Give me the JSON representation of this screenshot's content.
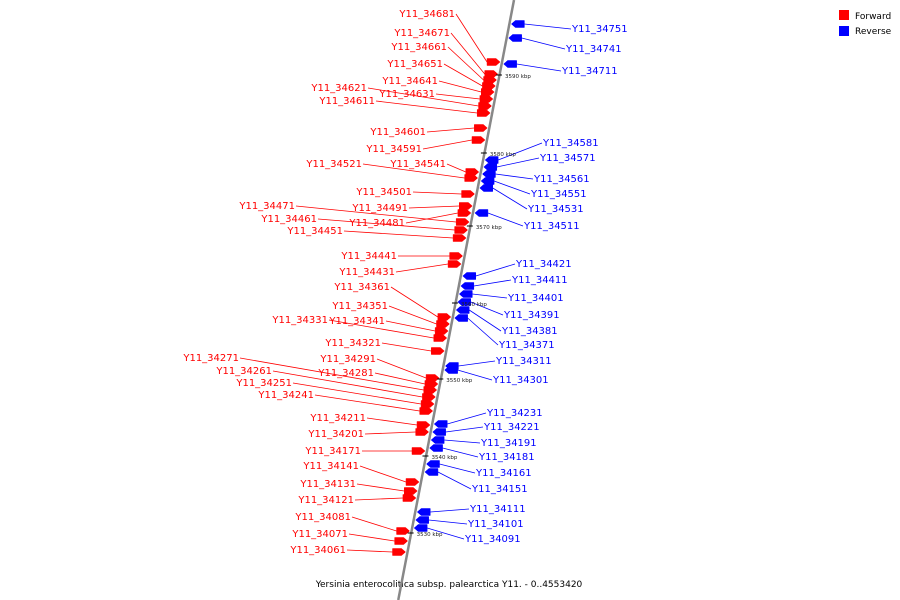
{
  "legend": [
    {
      "label": "Forward",
      "color": "#ff0000"
    },
    {
      "label": "Reverse",
      "color": "#0000ff"
    }
  ],
  "caption": "Yersinia enterocolitica subsp. palearctica Y11. - 0..4553420",
  "colors": {
    "forward": "#ff0000",
    "reverse": "#0000ff",
    "backbone": "#888888"
  },
  "ticks": [
    "3590 kbp",
    "3580 kbp",
    "3570 kbp",
    "3560 kbp",
    "3550 kbp",
    "3540 kbp",
    "3530 kbp"
  ],
  "forward_genes": [
    "Y11_34681",
    "Y11_34671",
    "Y11_34661",
    "Y11_34651",
    "Y11_34641",
    "Y11_34631",
    "Y11_34621",
    "Y11_34611",
    "Y11_34601",
    "Y11_34591",
    "Y11_34541",
    "Y11_34521",
    "Y11_34501",
    "Y11_34491",
    "Y11_34481",
    "Y11_34471",
    "Y11_34461",
    "Y11_34451",
    "Y11_34441",
    "Y11_34431",
    "Y11_34361",
    "Y11_34351",
    "Y11_34341",
    "Y11_34331",
    "Y11_34321",
    "Y11_34291",
    "Y11_34281",
    "Y11_34271",
    "Y11_34261",
    "Y11_34251",
    "Y11_34241",
    "Y11_34211",
    "Y11_34201",
    "Y11_34171",
    "Y11_34141",
    "Y11_34131",
    "Y11_34121",
    "Y11_34081",
    "Y11_34071",
    "Y11_34061"
  ],
  "reverse_genes": [
    "Y11_34751",
    "Y11_34741",
    "Y11_34711",
    "Y11_34581",
    "Y11_34571",
    "Y11_34561",
    "Y11_34551",
    "Y11_34531",
    "Y11_34511",
    "Y11_34421",
    "Y11_34411",
    "Y11_34401",
    "Y11_34391",
    "Y11_34381",
    "Y11_34371",
    "Y11_34311",
    "Y11_34301",
    "Y11_34231",
    "Y11_34221",
    "Y11_34191",
    "Y11_34181",
    "Y11_34161",
    "Y11_34151",
    "Y11_34111",
    "Y11_34101",
    "Y11_34091"
  ]
}
